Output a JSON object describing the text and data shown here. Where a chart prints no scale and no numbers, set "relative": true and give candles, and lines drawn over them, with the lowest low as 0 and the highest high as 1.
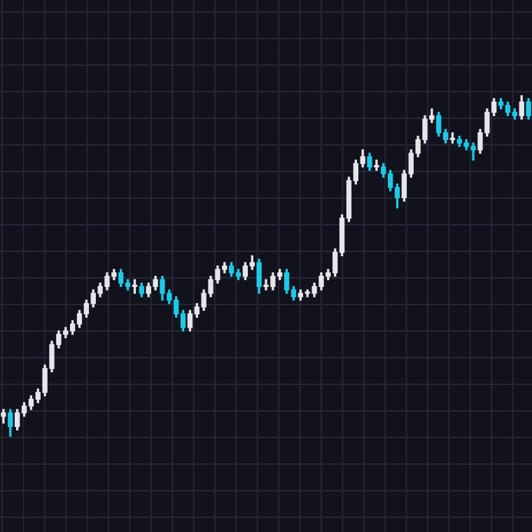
{
  "chart_data": {
    "type": "candlestick",
    "relative": true,
    "grid": true,
    "categories": [
      null,
      null,
      null,
      null,
      null,
      null,
      null,
      null,
      null,
      null,
      null,
      null,
      null,
      null,
      null,
      null,
      null,
      null,
      null,
      null,
      null,
      null,
      null,
      null,
      null,
      null,
      null,
      null,
      null,
      null,
      null,
      null,
      null,
      null,
      null,
      null,
      null,
      null,
      null,
      null,
      null,
      null,
      null,
      null,
      null,
      null,
      null,
      null,
      null,
      null,
      null,
      null,
      null,
      null,
      null,
      null,
      null,
      null,
      null,
      null,
      null,
      null,
      null,
      null,
      null,
      null,
      null,
      null,
      null,
      null,
      null,
      null,
      null,
      null,
      null,
      null,
      null
    ],
    "ohlc": [
      [
        0.06,
        0.08,
        0.04,
        0.07
      ],
      [
        0.07,
        0.08,
        0.0,
        0.03
      ],
      [
        0.03,
        0.08,
        0.02,
        0.07
      ],
      [
        0.07,
        0.1,
        0.06,
        0.09
      ],
      [
        0.09,
        0.12,
        0.08,
        0.11
      ],
      [
        0.11,
        0.14,
        0.1,
        0.13
      ],
      [
        0.13,
        0.21,
        0.12,
        0.2
      ],
      [
        0.2,
        0.28,
        0.19,
        0.27
      ],
      [
        0.27,
        0.31,
        0.26,
        0.3
      ],
      [
        0.3,
        0.32,
        0.29,
        0.31
      ],
      [
        0.31,
        0.34,
        0.3,
        0.33
      ],
      [
        0.33,
        0.37,
        0.32,
        0.36
      ],
      [
        0.36,
        0.4,
        0.35,
        0.39
      ],
      [
        0.39,
        0.43,
        0.38,
        0.42
      ],
      [
        0.42,
        0.45,
        0.41,
        0.44
      ],
      [
        0.44,
        0.48,
        0.43,
        0.47
      ],
      [
        0.47,
        0.49,
        0.46,
        0.48
      ],
      [
        0.48,
        0.49,
        0.44,
        0.45
      ],
      [
        0.45,
        0.46,
        0.43,
        0.44
      ],
      [
        0.44,
        0.46,
        0.42,
        0.44
      ],
      [
        0.44,
        0.45,
        0.41,
        0.42
      ],
      [
        0.42,
        0.45,
        0.41,
        0.44
      ],
      [
        0.44,
        0.47,
        0.43,
        0.46
      ],
      [
        0.46,
        0.47,
        0.4,
        0.42
      ],
      [
        0.42,
        0.43,
        0.39,
        0.4
      ],
      [
        0.4,
        0.41,
        0.35,
        0.36
      ],
      [
        0.36,
        0.37,
        0.31,
        0.32
      ],
      [
        0.32,
        0.37,
        0.31,
        0.36
      ],
      [
        0.36,
        0.39,
        0.35,
        0.38
      ],
      [
        0.38,
        0.43,
        0.37,
        0.42
      ],
      [
        0.42,
        0.47,
        0.41,
        0.46
      ],
      [
        0.46,
        0.5,
        0.45,
        0.49
      ],
      [
        0.49,
        0.51,
        0.48,
        0.5
      ],
      [
        0.5,
        0.51,
        0.47,
        0.48
      ],
      [
        0.48,
        0.49,
        0.46,
        0.47
      ],
      [
        0.47,
        0.51,
        0.46,
        0.5
      ],
      [
        0.5,
        0.53,
        0.49,
        0.51
      ],
      [
        0.51,
        0.52,
        0.42,
        0.44
      ],
      [
        0.44,
        0.46,
        0.43,
        0.44
      ],
      [
        0.44,
        0.48,
        0.43,
        0.47
      ],
      [
        0.47,
        0.49,
        0.46,
        0.48
      ],
      [
        0.48,
        0.49,
        0.42,
        0.43
      ],
      [
        0.43,
        0.44,
        0.4,
        0.41
      ],
      [
        0.41,
        0.43,
        0.4,
        0.42
      ],
      [
        0.42,
        0.43,
        0.41,
        0.42
      ],
      [
        0.42,
        0.45,
        0.41,
        0.44
      ],
      [
        0.44,
        0.48,
        0.43,
        0.47
      ],
      [
        0.47,
        0.49,
        0.46,
        0.48
      ],
      [
        0.48,
        0.55,
        0.47,
        0.54
      ],
      [
        0.54,
        0.65,
        0.53,
        0.64
      ],
      [
        0.64,
        0.76,
        0.63,
        0.75
      ],
      [
        0.75,
        0.81,
        0.74,
        0.8
      ],
      [
        0.8,
        0.84,
        0.79,
        0.82
      ],
      [
        0.82,
        0.83,
        0.78,
        0.79
      ],
      [
        0.79,
        0.81,
        0.78,
        0.79
      ],
      [
        0.79,
        0.8,
        0.76,
        0.77
      ],
      [
        0.77,
        0.78,
        0.72,
        0.73
      ],
      [
        0.73,
        0.74,
        0.67,
        0.7
      ],
      [
        0.7,
        0.78,
        0.69,
        0.77
      ],
      [
        0.77,
        0.84,
        0.76,
        0.83
      ],
      [
        0.83,
        0.88,
        0.82,
        0.87
      ],
      [
        0.87,
        0.94,
        0.86,
        0.93
      ],
      [
        0.93,
        0.96,
        0.92,
        0.94
      ],
      [
        0.94,
        0.95,
        0.88,
        0.89
      ],
      [
        0.89,
        0.9,
        0.86,
        0.87
      ],
      [
        0.87,
        0.89,
        0.86,
        0.87
      ],
      [
        0.87,
        0.88,
        0.85,
        0.86
      ],
      [
        0.86,
        0.87,
        0.84,
        0.85
      ],
      [
        0.85,
        0.86,
        0.81,
        0.84
      ],
      [
        0.84,
        0.9,
        0.83,
        0.89
      ],
      [
        0.89,
        0.96,
        0.88,
        0.95
      ],
      [
        0.95,
        0.99,
        0.94,
        0.98
      ],
      [
        0.98,
        0.99,
        0.96,
        0.97
      ],
      [
        0.97,
        0.98,
        0.94,
        0.95
      ],
      [
        0.95,
        0.96,
        0.93,
        0.94
      ],
      [
        0.94,
        1.0,
        0.93,
        0.98
      ],
      [
        0.98,
        0.99,
        0.93,
        0.94
      ]
    ],
    "colors": [
      "#e6e6ea",
      "#1ec8e6",
      "#e6e6ea",
      "#e6e6ea",
      "#e6e6ea",
      "#e6e6ea",
      "#e6e6ea",
      "#e6e6ea",
      "#e6e6ea",
      "#e6e6ea",
      "#e6e6ea",
      "#e6e6ea",
      "#e6e6ea",
      "#e6e6ea",
      "#e6e6ea",
      "#e6e6ea",
      "#e6e6ea",
      "#1ec8e6",
      "#1ec8e6",
      "#e6e6ea",
      "#1ec8e6",
      "#e6e6ea",
      "#e6e6ea",
      "#1ec8e6",
      "#1ec8e6",
      "#1ec8e6",
      "#1ec8e6",
      "#e6e6ea",
      "#e6e6ea",
      "#e6e6ea",
      "#e6e6ea",
      "#e6e6ea",
      "#e6e6ea",
      "#1ec8e6",
      "#1ec8e6",
      "#e6e6ea",
      "#e6e6ea",
      "#1ec8e6",
      "#e6e6ea",
      "#e6e6ea",
      "#e6e6ea",
      "#1ec8e6",
      "#1ec8e6",
      "#e6e6ea",
      "#e6e6ea",
      "#e6e6ea",
      "#e6e6ea",
      "#e6e6ea",
      "#e6e6ea",
      "#e6e6ea",
      "#e6e6ea",
      "#e6e6ea",
      "#e6e6ea",
      "#1ec8e6",
      "#e6e6ea",
      "#1ec8e6",
      "#1ec8e6",
      "#1ec8e6",
      "#e6e6ea",
      "#e6e6ea",
      "#e6e6ea",
      "#e6e6ea",
      "#e6e6ea",
      "#1ec8e6",
      "#1ec8e6",
      "#e6e6ea",
      "#1ec8e6",
      "#1ec8e6",
      "#1ec8e6",
      "#e6e6ea",
      "#e6e6ea",
      "#e6e6ea",
      "#1ec8e6",
      "#1ec8e6",
      "#1ec8e6",
      "#e6e6ea",
      "#1ec8e6"
    ]
  }
}
